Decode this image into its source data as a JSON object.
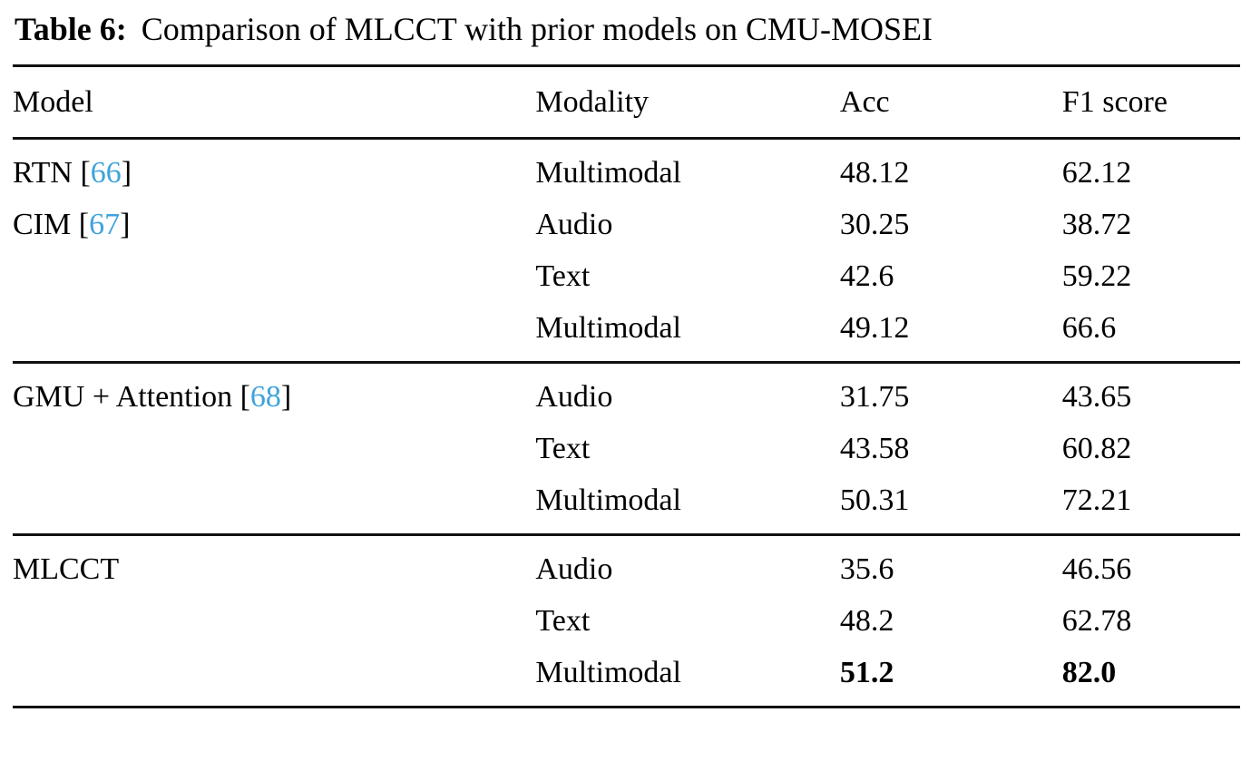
{
  "caption": {
    "label": "Table 6:",
    "text": "Comparison of MLCCT with prior models on CMU-MOSEI"
  },
  "accent_color": "#3FA3DC",
  "chart_data": {
    "type": "table",
    "columns": [
      "Model",
      "Modality",
      "Acc",
      "F1 score"
    ],
    "groups": [
      {
        "rows": [
          {
            "model": "RTN",
            "cite": "66",
            "modality": "Multimodal",
            "acc": "48.12",
            "f1": "62.12",
            "bold": false
          },
          {
            "model": "CIM",
            "cite": "67",
            "modality": "Audio",
            "acc": "30.25",
            "f1": "38.72",
            "bold": false
          },
          {
            "model": "",
            "cite": "",
            "modality": "Text",
            "acc": "42.6",
            "f1": "59.22",
            "bold": false
          },
          {
            "model": "",
            "cite": "",
            "modality": "Multimodal",
            "acc": "49.12",
            "f1": "66.6",
            "bold": false
          }
        ]
      },
      {
        "rows": [
          {
            "model": "GMU + Attention",
            "cite": "68",
            "modality": "Audio",
            "acc": "31.75",
            "f1": "43.65",
            "bold": false
          },
          {
            "model": "",
            "cite": "",
            "modality": "Text",
            "acc": "43.58",
            "f1": "60.82",
            "bold": false
          },
          {
            "model": "",
            "cite": "",
            "modality": "Multimodal",
            "acc": "50.31",
            "f1": "72.21",
            "bold": false
          }
        ]
      },
      {
        "rows": [
          {
            "model": "MLCCT",
            "cite": "",
            "modality": "Audio",
            "acc": "35.6",
            "f1": "46.56",
            "bold": false
          },
          {
            "model": "",
            "cite": "",
            "modality": "Text",
            "acc": "48.2",
            "f1": "62.78",
            "bold": false
          },
          {
            "model": "",
            "cite": "",
            "modality": "Multimodal",
            "acc": "51.2",
            "f1": "82.0",
            "bold": true
          }
        ]
      }
    ]
  }
}
